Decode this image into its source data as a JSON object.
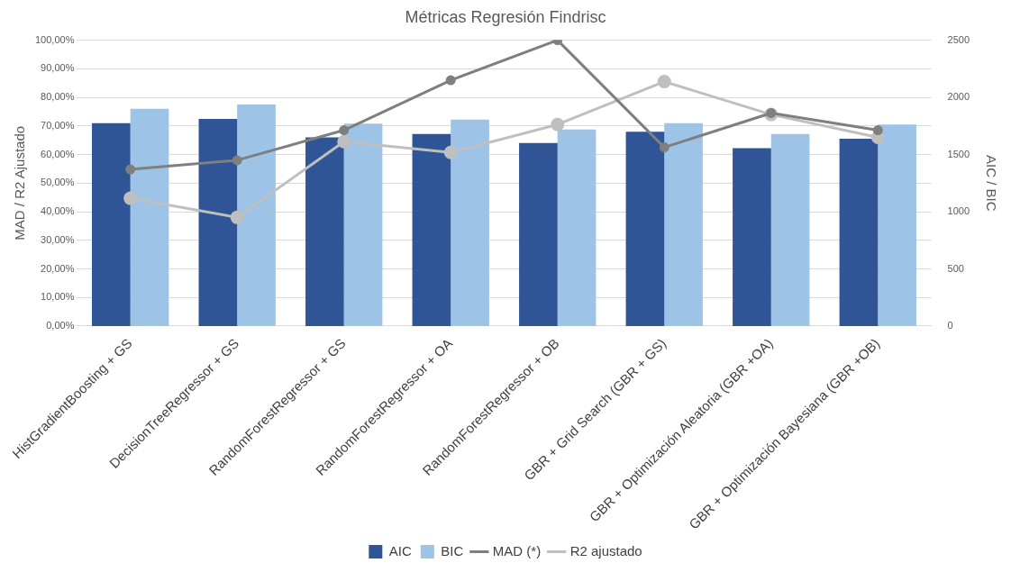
{
  "chart_data": {
    "type": "bar",
    "title": "Métricas Regresión Findrisc",
    "ylabel": "MAD / R2 Ajustado",
    "y2label": "AIC / BIC",
    "categories": [
      "HistGradientBoosting + GS",
      "DecisionTreeRegressor + GS",
      "RandomForestRegressor + GS",
      "RandomForestRegressor + OA",
      "RandomForestRegressor + OB",
      "GBR + Grid Search (GBR + GS)",
      "GBR + Optimización Aleatoria (GBR +OA)",
      "GBR + Optimización Bayesiana (GBR +OB)"
    ],
    "series": [
      {
        "name": "AIC",
        "axis": "y2",
        "color": "#2f5597",
        "values": [
          1775,
          1812,
          1650,
          1680,
          1600,
          1700,
          1555,
          1638
        ]
      },
      {
        "name": "BIC",
        "axis": "y2",
        "color": "#9dc3e6",
        "values": [
          1900,
          1938,
          1770,
          1805,
          1718,
          1775,
          1680,
          1762
        ]
      },
      {
        "name": "MAD (*)",
        "type": "line",
        "axis": "y",
        "color": "#7f7f7f",
        "values": [
          54.8,
          58,
          68.5,
          86,
          100,
          62.5,
          74.5,
          68.5
        ]
      },
      {
        "name": "R2 ajustado",
        "type": "line",
        "axis": "y",
        "color": "#bfbfbf",
        "values": [
          44.7,
          38,
          64.5,
          60.7,
          70.5,
          85.5,
          74,
          66
        ]
      }
    ],
    "ylim": [
      0,
      100
    ],
    "yticks": [
      {
        "value": 0,
        "label": "0,00%"
      },
      {
        "value": 10,
        "label": "10,00%"
      },
      {
        "value": 20,
        "label": "20,00%"
      },
      {
        "value": 30,
        "label": "30,00%"
      },
      {
        "value": 40,
        "label": "40,00%"
      },
      {
        "value": 50,
        "label": "50,00%"
      },
      {
        "value": 60,
        "label": "60,00%"
      },
      {
        "value": 70,
        "label": "70,00%"
      },
      {
        "value": 80,
        "label": "80,00%"
      },
      {
        "value": 90,
        "label": "90,00%"
      },
      {
        "value": 100,
        "label": "100,00%"
      }
    ],
    "y2lim": [
      0,
      2500
    ],
    "y2ticks": [
      0,
      500,
      1000,
      1500,
      2000,
      2500
    ],
    "grid": "y",
    "legend": "bottom",
    "marker": "circle",
    "line_style": "solid"
  }
}
